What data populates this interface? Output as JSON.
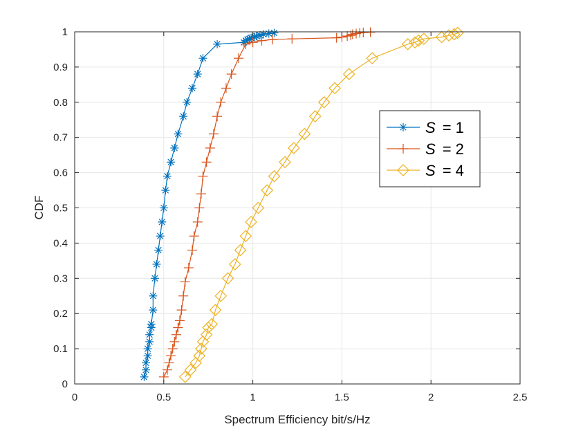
{
  "chart_data": {
    "type": "line",
    "title": "",
    "xlabel": "Spectrum Efficiency bit/s/Hz",
    "ylabel": "CDF",
    "xlim": [
      0,
      2.5
    ],
    "ylim": [
      0,
      1
    ],
    "xticks": [
      0,
      0.5,
      1,
      1.5,
      2,
      2.5
    ],
    "xtick_labels": [
      "0",
      "0.5",
      "1",
      "1.5",
      "2",
      "2.5"
    ],
    "yticks": [
      0,
      0.1,
      0.2,
      0.3,
      0.4,
      0.5,
      0.6,
      0.7,
      0.8,
      0.9,
      1
    ],
    "ytick_labels": [
      "0",
      "0.1",
      "0.2",
      "0.3",
      "0.4",
      "0.5",
      "0.6",
      "0.7",
      "0.8",
      "0.9",
      "1"
    ],
    "grid": true,
    "legend_position": "right-middle",
    "series": [
      {
        "name": "S = 1",
        "legend_var": "S",
        "legend_rest": "= 1",
        "color": "#0072BD",
        "marker": "asterisk",
        "x": [
          0.39,
          0.4,
          0.4,
          0.41,
          0.41,
          0.42,
          0.42,
          0.43,
          0.43,
          0.44,
          0.44,
          0.45,
          0.46,
          0.47,
          0.48,
          0.49,
          0.5,
          0.51,
          0.52,
          0.54,
          0.56,
          0.58,
          0.61,
          0.63,
          0.66,
          0.69,
          0.72,
          0.8,
          0.95,
          0.96,
          0.97,
          0.98,
          0.99,
          1.01,
          1.02,
          1.04,
          1.06,
          1.09,
          1.12
        ],
        "y": [
          0.02,
          0.04,
          0.06,
          0.08,
          0.1,
          0.12,
          0.14,
          0.16,
          0.17,
          0.21,
          0.25,
          0.3,
          0.34,
          0.38,
          0.42,
          0.46,
          0.5,
          0.55,
          0.59,
          0.63,
          0.67,
          0.71,
          0.76,
          0.8,
          0.84,
          0.88,
          0.925,
          0.965,
          0.97,
          0.975,
          0.978,
          0.98,
          0.983,
          0.985,
          0.988,
          0.99,
          0.993,
          0.995,
          0.997
        ]
      },
      {
        "name": "S = 2",
        "legend_var": "S",
        "legend_rest": "= 2",
        "color": "#D95319",
        "marker": "plus",
        "x": [
          0.5,
          0.52,
          0.53,
          0.54,
          0.55,
          0.56,
          0.57,
          0.58,
          0.59,
          0.6,
          0.61,
          0.62,
          0.64,
          0.66,
          0.67,
          0.69,
          0.7,
          0.71,
          0.72,
          0.74,
          0.76,
          0.78,
          0.8,
          0.82,
          0.85,
          0.88,
          0.92,
          0.96,
          1.0,
          1.05,
          1.11,
          1.22,
          1.47,
          1.5,
          1.53,
          1.55,
          1.56,
          1.58,
          1.6,
          1.62,
          1.66
        ],
        "y": [
          0.02,
          0.04,
          0.06,
          0.08,
          0.1,
          0.12,
          0.14,
          0.16,
          0.18,
          0.21,
          0.25,
          0.29,
          0.33,
          0.38,
          0.42,
          0.46,
          0.5,
          0.54,
          0.59,
          0.63,
          0.67,
          0.71,
          0.76,
          0.8,
          0.84,
          0.88,
          0.925,
          0.965,
          0.97,
          0.975,
          0.978,
          0.98,
          0.983,
          0.985,
          0.988,
          0.99,
          0.993,
          0.995,
          0.997,
          0.998,
          0.999
        ]
      },
      {
        "name": "S = 4",
        "legend_var": "S",
        "legend_rest": "= 4",
        "color": "#EDB120",
        "marker": "diamond",
        "x": [
          0.62,
          0.65,
          0.68,
          0.7,
          0.71,
          0.72,
          0.74,
          0.75,
          0.77,
          0.79,
          0.82,
          0.86,
          0.9,
          0.93,
          0.96,
          0.99,
          1.03,
          1.08,
          1.12,
          1.18,
          1.23,
          1.29,
          1.35,
          1.4,
          1.46,
          1.54,
          1.67,
          1.87,
          1.91,
          1.93,
          1.96,
          2.06,
          2.1,
          2.13,
          2.15
        ],
        "y": [
          0.02,
          0.04,
          0.06,
          0.08,
          0.1,
          0.12,
          0.14,
          0.16,
          0.17,
          0.21,
          0.25,
          0.3,
          0.34,
          0.38,
          0.42,
          0.46,
          0.5,
          0.55,
          0.59,
          0.63,
          0.67,
          0.71,
          0.76,
          0.8,
          0.84,
          0.88,
          0.925,
          0.965,
          0.97,
          0.975,
          0.98,
          0.985,
          0.99,
          0.993,
          0.997
        ]
      }
    ]
  },
  "colors": {
    "axis": "#262626",
    "grid": "#e6e6e6",
    "background": "#ffffff"
  }
}
